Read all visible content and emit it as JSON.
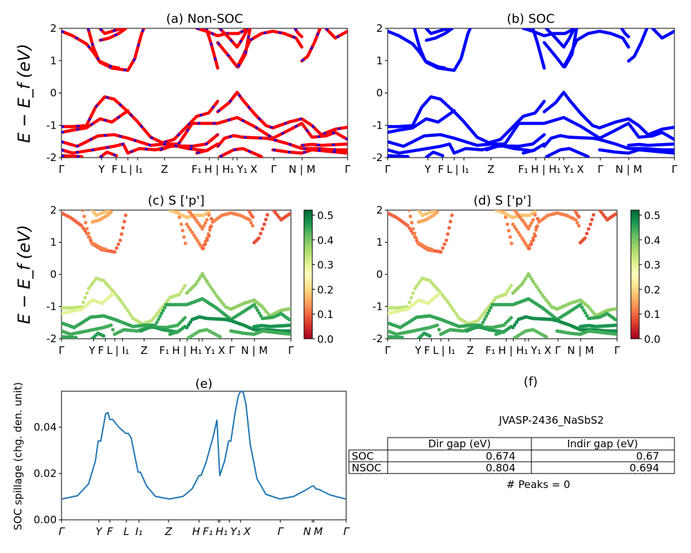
{
  "chart_data": [
    {
      "panel": "a",
      "type": "line",
      "title": "(a) Non-SOC",
      "ylabel": "E − E_f (eV)",
      "ylim": [
        -2,
        2
      ],
      "yticks": [
        2,
        1,
        0,
        -1,
        -2
      ],
      "xlim": [
        0,
        1
      ],
      "style": {
        "line_color": "#ff0000",
        "dash_color": "#0000ff"
      },
      "kpath_ticks": [
        {
          "k": 0,
          "label": "Γ"
        },
        {
          "k": 0.14,
          "label": "Y"
        },
        {
          "k": 0.191,
          "label": "F"
        },
        {
          "k": 0.232,
          "label": "L"
        },
        {
          "k": 0.266,
          "label": "| I₁"
        },
        {
          "k": 0.36,
          "label": "Z"
        },
        {
          "k": 0.517,
          "label": "F₁"
        },
        {
          "k": 0.548,
          "label": "H | H₁"
        },
        {
          "k": 0.599,
          "label": "Y₁"
        },
        {
          "k": 0.614,
          "label": "X"
        },
        {
          "k": 0.742,
          "label": "Γ"
        },
        {
          "k": 0.841,
          "label": "N | M"
        },
        {
          "k": 1,
          "label": "Γ"
        }
      ]
    },
    {
      "panel": "b",
      "type": "line",
      "title": "(b) SOC",
      "ylim": [
        -2,
        2
      ],
      "yticks": [
        2,
        1,
        0,
        -1,
        -2
      ],
      "xlim": [
        0,
        1
      ],
      "style": {
        "line_color": "#0000ff"
      }
    },
    {
      "panel": "c",
      "type": "scatter",
      "title": "(c)  S ['p']",
      "ylabel": "E − E_f (eV)",
      "ylim": [
        -2,
        2
      ],
      "yticks": [
        2,
        1,
        0,
        -1,
        -2
      ],
      "xlim": [
        0,
        1
      ],
      "colormap": "RdYlGn",
      "clim": [
        0,
        0.52
      ],
      "colorbar_ticks": [
        "0.0",
        "0.1",
        "0.2",
        "0.3",
        "0.4",
        "0.5"
      ]
    },
    {
      "panel": "d",
      "type": "scatter",
      "title": "(d) S ['p']",
      "ylim": [
        -2,
        2
      ],
      "yticks": [
        2,
        1,
        0,
        -1,
        -2
      ],
      "xlim": [
        0,
        1
      ],
      "colormap": "RdYlGn",
      "clim": [
        0,
        0.52
      ],
      "colorbar_ticks": [
        "0.0",
        "0.1",
        "0.2",
        "0.3",
        "0.4",
        "0.5"
      ]
    },
    {
      "panel": "e",
      "type": "line",
      "title": "(e)",
      "ylabel": "SOC spillage (chg. den. unit)",
      "ylim": [
        0,
        0.0555
      ],
      "yticks": [
        "0.00",
        "0.02",
        "0.04"
      ],
      "xlim": [
        0,
        1
      ],
      "color": "#1f77b4",
      "kpath_ticks": [
        {
          "k": 0,
          "label": "Γ"
        },
        {
          "k": 0.131,
          "label": "Y"
        },
        {
          "k": 0.17,
          "label": "F"
        },
        {
          "k": 0.228,
          "label": "L"
        },
        {
          "k": 0.272,
          "label": "I₁"
        },
        {
          "k": 0.376,
          "label": "Z"
        },
        {
          "k": 0.483,
          "label": "H"
        },
        {
          "k": 0.551,
          "label": "F₁"
        },
        {
          "k": 0.556,
          "label": "H₁"
        },
        {
          "k": 0.59,
          "label": "Y₁"
        },
        {
          "k": 0.629,
          "label": "X"
        },
        {
          "k": 0.769,
          "label": "Γ"
        },
        {
          "k": 0.881,
          "label": "N"
        },
        {
          "k": 0.886,
          "label": "M"
        },
        {
          "k": 1,
          "label": "Γ"
        }
      ],
      "x": [
        0.002,
        0.056,
        0.095,
        0.119,
        0.129,
        0.138,
        0.155,
        0.163,
        0.17,
        0.18,
        0.201,
        0.226,
        0.235,
        0.245,
        0.269,
        0.277,
        0.299,
        0.33,
        0.379,
        0.427,
        0.459,
        0.483,
        0.49,
        0.507,
        0.532,
        0.546,
        0.556,
        0.573,
        0.587,
        0.595,
        0.609,
        0.621,
        0.629,
        0.638,
        0.648,
        0.663,
        0.687,
        0.718,
        0.767,
        0.816,
        0.857,
        0.881,
        0.886,
        0.893,
        0.905,
        0.944,
        0.998
      ],
      "y": [
        0.009,
        0.0104,
        0.0155,
        0.0254,
        0.034,
        0.034,
        0.0457,
        0.0463,
        0.0433,
        0.0433,
        0.04,
        0.0373,
        0.0373,
        0.0352,
        0.0206,
        0.0206,
        0.0146,
        0.0101,
        0.009,
        0.0101,
        0.0134,
        0.0191,
        0.0191,
        0.0245,
        0.0355,
        0.043,
        0.0191,
        0.0254,
        0.034,
        0.034,
        0.0457,
        0.0534,
        0.0555,
        0.0552,
        0.0499,
        0.0325,
        0.0176,
        0.011,
        0.009,
        0.0101,
        0.0128,
        0.0146,
        0.0146,
        0.0134,
        0.0131,
        0.0107,
        0.009
      ]
    }
  ],
  "bands": [
    {
      "s": 0.1,
      "pts": [
        [
          0,
          1.91
        ],
        [
          0.039,
          1.77
        ],
        [
          0.087,
          1.52
        ],
        [
          0.111,
          1.27
        ],
        [
          0.135,
          0.95
        ],
        [
          0.176,
          0.77
        ],
        [
          0.232,
          0.7
        ],
        [
          0.256,
          1.06
        ],
        [
          0.28,
          1.84
        ],
        [
          0.288,
          2.0
        ]
      ]
    },
    {
      "s": 0.12,
      "pts": [
        [
          0.093,
          2.0
        ],
        [
          0.111,
          1.42
        ],
        [
          0.131,
          0.99
        ],
        [
          0.176,
          0.81
        ],
        [
          0.2,
          0.77
        ]
      ]
    },
    {
      "s": 0.18,
      "pts": [
        [
          0.135,
          1.99
        ],
        [
          0.151,
          1.84
        ],
        [
          0.192,
          1.95
        ],
        [
          0.216,
          2.0
        ]
      ]
    },
    {
      "s": 0.15,
      "pts": [
        [
          0.135,
          1.63
        ],
        [
          0.167,
          1.7
        ],
        [
          0.2,
          1.84
        ],
        [
          0.224,
          1.99
        ]
      ]
    },
    {
      "s": 0.12,
      "pts": [
        [
          0.506,
          2.0
        ],
        [
          0.522,
          1.56
        ],
        [
          0.546,
          0.77
        ]
      ]
    },
    {
      "s": 0.12,
      "pts": [
        [
          0.546,
          1.56
        ],
        [
          0.586,
          1.13
        ],
        [
          0.614,
          0.81
        ],
        [
          0.634,
          1.13
        ],
        [
          0.659,
          1.63
        ],
        [
          0.699,
          1.84
        ],
        [
          0.739,
          1.91
        ],
        [
          0.779,
          1.84
        ],
        [
          0.82,
          1.7
        ],
        [
          0.84,
          1.42
        ]
      ]
    },
    {
      "s": 0.1,
      "pts": [
        [
          0.618,
          0.81
        ],
        [
          0.643,
          1.2
        ],
        [
          0.659,
          2.0
        ]
      ]
    },
    {
      "s": 0.08,
      "pts": [
        [
          0.84,
          0.99
        ],
        [
          0.86,
          1.13
        ],
        [
          0.884,
          1.56
        ],
        [
          0.904,
          2.0
        ]
      ]
    },
    {
      "s": 0.08,
      "pts": [
        [
          0.924,
          2.0
        ],
        [
          0.957,
          1.7
        ],
        [
          1,
          1.91
        ]
      ]
    },
    {
      "s": 0.18,
      "pts": [
        [
          0.473,
          2.0
        ],
        [
          0.506,
          1.91
        ],
        [
          0.546,
          1.77
        ],
        [
          0.578,
          1.84
        ],
        [
          0.618,
          1.84
        ],
        [
          0.651,
          1.99
        ]
      ]
    },
    {
      "s": 0.12,
      "pts": [
        [
          0.554,
          1.99
        ],
        [
          0.586,
          1.7
        ],
        [
          0.614,
          1.42
        ],
        [
          0.634,
          1.7
        ],
        [
          0.651,
          2.0
        ]
      ]
    },
    {
      "s": 0.1,
      "pts": [
        [
          0.816,
          2.0
        ],
        [
          0.828,
          1.84
        ],
        [
          0.84,
          1.74
        ]
      ]
    },
    {
      "s": 0.34,
      "pts": [
        [
          0,
          -1.04
        ],
        [
          0.039,
          -1.04
        ],
        [
          0.087,
          -1.01
        ],
        [
          0.119,
          -0.44
        ],
        [
          0.151,
          -0.12
        ],
        [
          0.184,
          -0.19
        ],
        [
          0.232,
          -0.58
        ],
        [
          0.264,
          -0.87
        ],
        [
          0.312,
          -1.37
        ],
        [
          0.353,
          -1.54
        ],
        [
          0.393,
          -1.44
        ],
        [
          0.441,
          -1.01
        ],
        [
          0.473,
          -0.72
        ],
        [
          0.514,
          -0.62
        ],
        [
          0.546,
          -0.26
        ]
      ]
    },
    {
      "s": 0.38,
      "pts": [
        [
          0.546,
          -0.58
        ],
        [
          0.586,
          -0.3
        ],
        [
          0.614,
          0.02
        ],
        [
          0.634,
          -0.22
        ],
        [
          0.675,
          -0.65
        ],
        [
          0.715,
          -1.01
        ],
        [
          0.739,
          -1.08
        ],
        [
          0.795,
          -0.9
        ],
        [
          0.84,
          -0.8
        ],
        [
          0.876,
          -1.01
        ],
        [
          0.908,
          -1.29
        ],
        [
          0.957,
          -1.12
        ],
        [
          1,
          -1.06
        ]
      ]
    },
    {
      "s": 0.3,
      "pts": [
        [
          0,
          -1.22
        ],
        [
          0.039,
          -1.15
        ],
        [
          0.087,
          -1.08
        ],
        [
          0.135,
          -0.8
        ],
        [
          0.176,
          -0.9
        ],
        [
          0.232,
          -0.55
        ]
      ]
    },
    {
      "s": 0.45,
      "pts": [
        [
          0,
          -1.51
        ],
        [
          0.055,
          -1.65
        ],
        [
          0.087,
          -1.51
        ],
        [
          0.127,
          -1.33
        ],
        [
          0.184,
          -1.29
        ],
        [
          0.232,
          -1.4
        ],
        [
          0.312,
          -1.62
        ],
        [
          0.361,
          -1.58
        ],
        [
          0.409,
          -1.58
        ],
        [
          0.457,
          -0.94
        ],
        [
          0.506,
          -0.94
        ],
        [
          0.546,
          -0.94
        ],
        [
          0.614,
          -0.76
        ],
        [
          0.675,
          -1.04
        ],
        [
          0.739,
          -1.4
        ],
        [
          0.795,
          -1.15
        ],
        [
          0.84,
          -0.94
        ],
        [
          0.876,
          -1.37
        ],
        [
          0.924,
          -1.33
        ],
        [
          0.957,
          -1.22
        ],
        [
          1,
          -1.44
        ]
      ]
    },
    {
      "s": 0.44,
      "pts": [
        [
          0,
          -1.76
        ],
        [
          0.039,
          -1.86
        ],
        [
          0.111,
          -1.76
        ],
        [
          0.184,
          -1.65
        ],
        [
          0.216,
          -1.58
        ],
        [
          0.232,
          -1.86
        ],
        [
          0.272,
          -1.72
        ],
        [
          0.329,
          -1.76
        ],
        [
          0.377,
          -1.65
        ],
        [
          0.409,
          -1.64
        ],
        [
          0.457,
          -1.65
        ],
        [
          0.506,
          -1.58
        ],
        [
          0.546,
          -1.29
        ]
      ]
    },
    {
      "s": 0.48,
      "pts": [
        [
          0.546,
          -1.65
        ],
        [
          0.57,
          -1.4
        ],
        [
          0.602,
          -1.32
        ],
        [
          0.634,
          -1.37
        ],
        [
          0.715,
          -1.4
        ],
        [
          0.739,
          -1.44
        ],
        [
          0.795,
          -1.58
        ],
        [
          0.84,
          -1.72
        ],
        [
          0.892,
          -1.72
        ],
        [
          0.957,
          -1.76
        ],
        [
          1,
          -1.76
        ]
      ]
    },
    {
      "s": 0.46,
      "pts": [
        [
          0.345,
          -1.76
        ],
        [
          0.393,
          -1.62
        ],
        [
          0.441,
          -1.72
        ],
        [
          0.506,
          -1.79
        ],
        [
          0.546,
          -1.58
        ]
      ]
    },
    {
      "s": 0.45,
      "pts": [
        [
          0,
          -1.94
        ],
        [
          0.071,
          -1.97
        ]
      ]
    },
    {
      "s": 0.46,
      "pts": [
        [
          0.135,
          -1.99
        ],
        [
          0.159,
          -1.83
        ],
        [
          0.192,
          -1.94
        ]
      ]
    },
    {
      "s": 0.45,
      "pts": [
        [
          0.473,
          -1.86
        ],
        [
          0.514,
          -1.76
        ]
      ]
    },
    {
      "s": 0.42,
      "pts": [
        [
          0.554,
          -1.97
        ],
        [
          0.602,
          -1.76
        ],
        [
          0.634,
          -1.72
        ],
        [
          0.699,
          -1.97
        ]
      ]
    },
    {
      "s": 0.44,
      "pts": [
        [
          0.739,
          -1.76
        ],
        [
          0.795,
          -1.83
        ],
        [
          0.84,
          -1.86
        ],
        [
          0.876,
          -1.76
        ],
        [
          1,
          -1.86
        ]
      ]
    },
    {
      "s": 0.47,
      "pts": [
        [
          0.84,
          -1.62
        ],
        [
          0.876,
          -1.59
        ],
        [
          0.908,
          -1.62
        ],
        [
          1,
          -1.58
        ]
      ]
    }
  ],
  "panel_f": {
    "title": "(f)",
    "material": "JVASP-2436_NaSbS2",
    "table": {
      "headers": [
        "Dir gap (eV)",
        "Indir gap (eV)"
      ],
      "rows": [
        {
          "label": "SOC",
          "dir": "0.674",
          "indir": "0.67"
        },
        {
          "label": "NSOC",
          "dir": "0.804",
          "indir": "0.694"
        }
      ]
    },
    "peaks": "# Peaks = 0"
  }
}
